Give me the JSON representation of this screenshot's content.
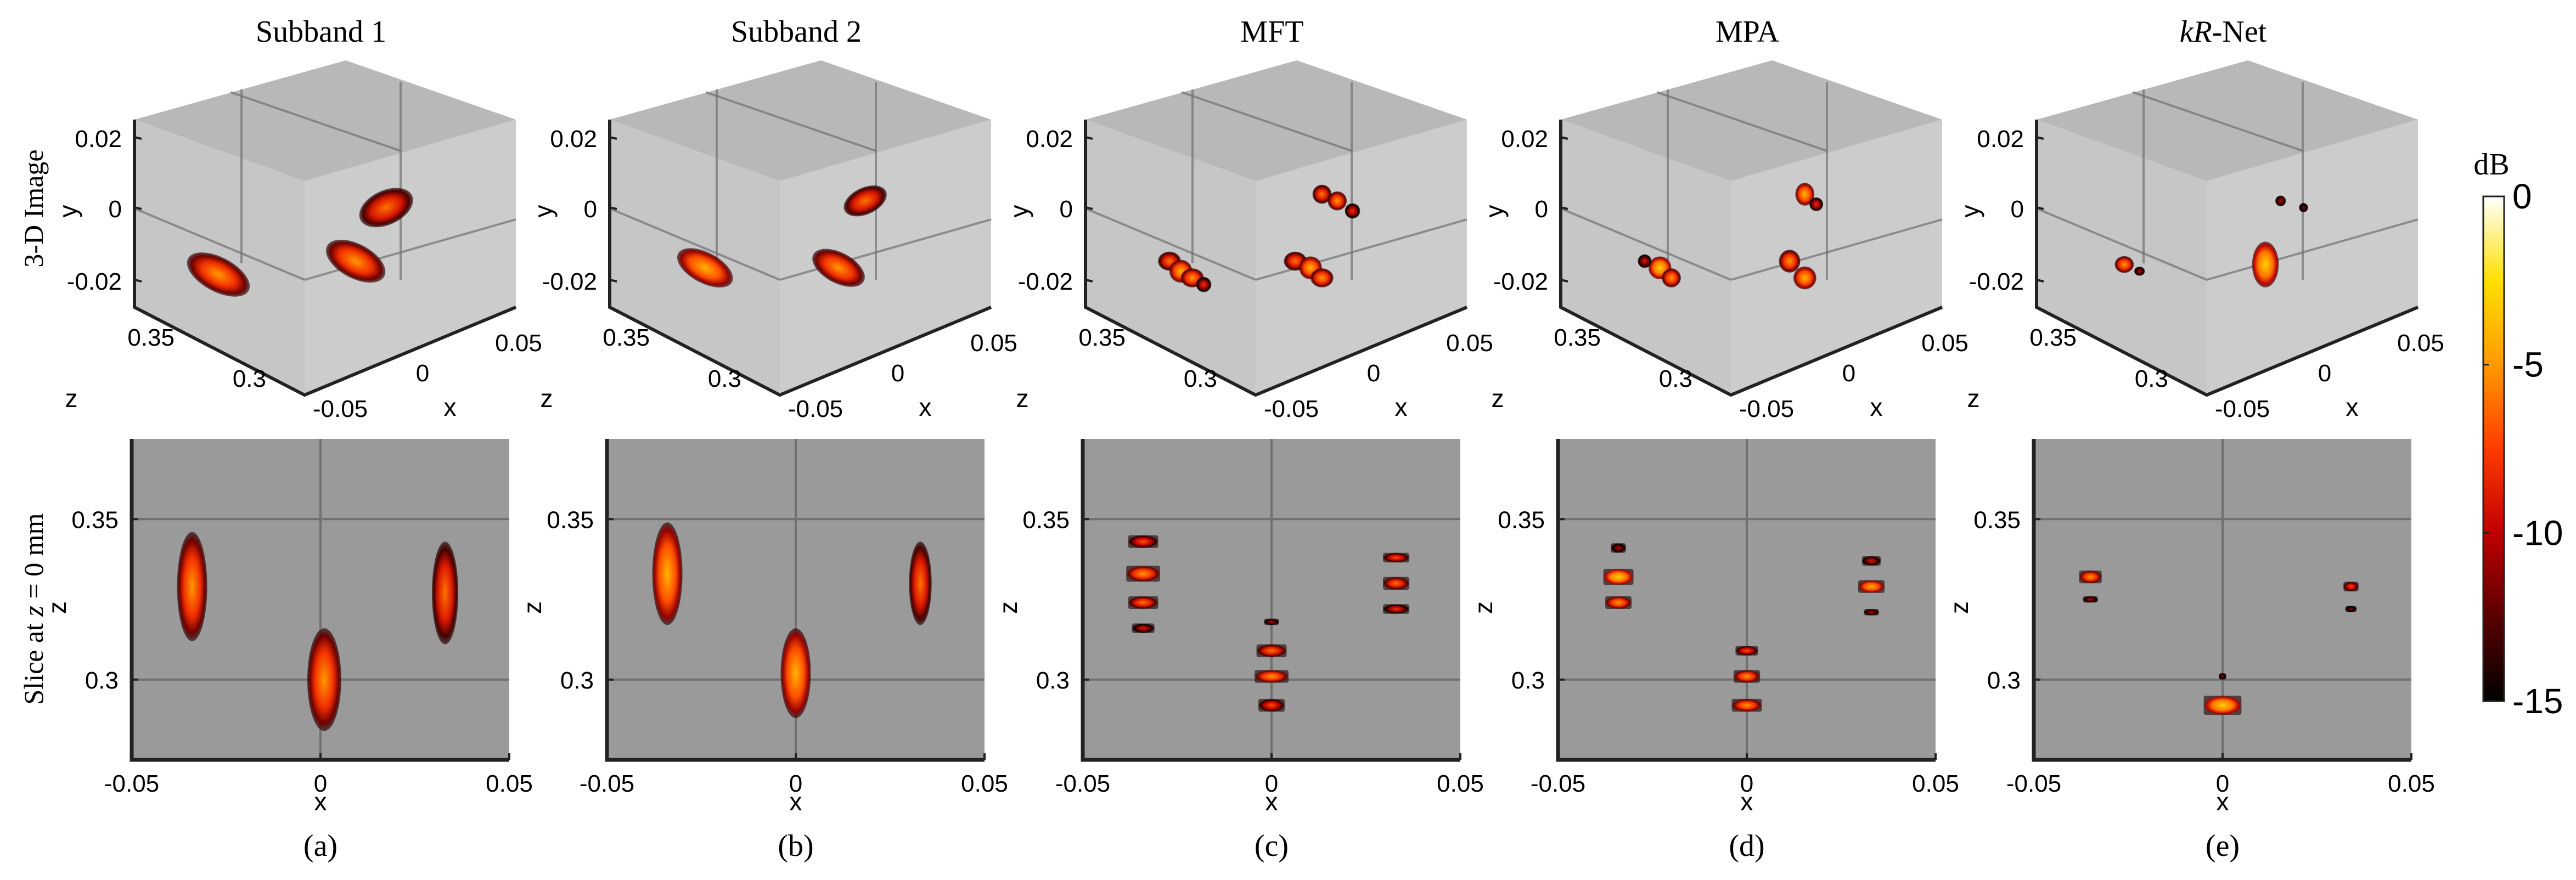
{
  "figure": {
    "colorbar": {
      "unit_label": "dB",
      "ticks": [
        "0",
        "-5",
        "-10",
        "-15"
      ],
      "range": [
        -15,
        0
      ],
      "colors": [
        "#000000",
        "#5a0000",
        "#c00000",
        "#ff3b00",
        "#ff9a00",
        "#ffe000",
        "#ffffff"
      ]
    },
    "row_labels": [
      "3-D Image",
      "Slice at z = 0 mm"
    ],
    "row_label_italic_var": "z",
    "panels": [
      {
        "title": "Subband 1",
        "title_italic": "",
        "caption": "(a)"
      },
      {
        "title": "Subband 2",
        "title_italic": "",
        "caption": "(b)"
      },
      {
        "title": "MFT",
        "title_italic": "",
        "caption": "(c)"
      },
      {
        "title": "MPA",
        "title_italic": "",
        "caption": "(d)"
      },
      {
        "title": "-Net",
        "title_italic": "kR",
        "caption": "(e)"
      }
    ],
    "axes_3d": {
      "y_label": "y",
      "z_label": "z",
      "x_label": "x",
      "y_ticks": [
        "0.02",
        "0",
        "-0.02"
      ],
      "z_ticks": [
        "0.35",
        "0.3"
      ],
      "x_ticks": [
        "-0.05",
        "0",
        "0.05"
      ]
    },
    "axes_2d": {
      "x_label": "x",
      "y_label": "z",
      "x_ticks": [
        "-0.05",
        "0",
        "0.05"
      ],
      "y_ticks": [
        "0.35",
        "0.3"
      ],
      "x_range": [
        -0.05,
        0.05
      ],
      "z_range": [
        0.275,
        0.375
      ]
    },
    "background_colors": {
      "box3d": "#c6c6c6",
      "slice": "#9a9a9a",
      "grid": "#707070"
    }
  },
  "chart_data": [
    {
      "type": "heatmap",
      "title": "Subband 1 slice",
      "xlabel": "x",
      "ylabel": "z",
      "xlim": [
        -0.05,
        0.05
      ],
      "ylim": [
        0.275,
        0.375
      ],
      "targets": [
        {
          "x": -0.034,
          "z": 0.329,
          "w": 0.008,
          "h": 0.034,
          "level": -7
        },
        {
          "x": 0.001,
          "z": 0.3,
          "w": 0.009,
          "h": 0.032,
          "level": -7
        },
        {
          "x": 0.033,
          "z": 0.327,
          "w": 0.007,
          "h": 0.032,
          "level": -8
        }
      ]
    },
    {
      "type": "heatmap",
      "title": "Subband 2 slice",
      "xlabel": "x",
      "ylabel": "z",
      "xlim": [
        -0.05,
        0.05
      ],
      "ylim": [
        0.275,
        0.375
      ],
      "targets": [
        {
          "x": -0.034,
          "z": 0.333,
          "w": 0.008,
          "h": 0.032,
          "level": -6
        },
        {
          "x": 0.0,
          "z": 0.302,
          "w": 0.008,
          "h": 0.028,
          "level": -6
        },
        {
          "x": 0.033,
          "z": 0.33,
          "w": 0.006,
          "h": 0.026,
          "level": -8
        }
      ]
    },
    {
      "type": "heatmap",
      "title": "MFT slice",
      "xlabel": "x",
      "ylabel": "z",
      "xlim": [
        -0.05,
        0.05
      ],
      "ylim": [
        0.275,
        0.375
      ],
      "targets": [
        {
          "x": -0.034,
          "z": 0.343,
          "w": 0.008,
          "h": 0.004,
          "level": -9
        },
        {
          "x": -0.034,
          "z": 0.333,
          "w": 0.009,
          "h": 0.005,
          "level": -7
        },
        {
          "x": -0.034,
          "z": 0.324,
          "w": 0.008,
          "h": 0.004,
          "level": -8
        },
        {
          "x": -0.034,
          "z": 0.316,
          "w": 0.006,
          "h": 0.003,
          "level": -11
        },
        {
          "x": 0.0,
          "z": 0.309,
          "w": 0.008,
          "h": 0.004,
          "level": -8
        },
        {
          "x": 0.0,
          "z": 0.301,
          "w": 0.009,
          "h": 0.004,
          "level": -7
        },
        {
          "x": 0.0,
          "z": 0.292,
          "w": 0.007,
          "h": 0.004,
          "level": -9
        },
        {
          "x": 0.0,
          "z": 0.318,
          "w": 0.004,
          "h": 0.002,
          "level": -12
        },
        {
          "x": 0.033,
          "z": 0.338,
          "w": 0.007,
          "h": 0.003,
          "level": -9
        },
        {
          "x": 0.033,
          "z": 0.33,
          "w": 0.007,
          "h": 0.004,
          "level": -8
        },
        {
          "x": 0.033,
          "z": 0.322,
          "w": 0.007,
          "h": 0.003,
          "level": -10
        }
      ]
    },
    {
      "type": "heatmap",
      "title": "MPA slice",
      "xlabel": "x",
      "ylabel": "z",
      "xlim": [
        -0.05,
        0.05
      ],
      "ylim": [
        0.275,
        0.375
      ],
      "targets": [
        {
          "x": -0.034,
          "z": 0.341,
          "w": 0.004,
          "h": 0.003,
          "level": -12
        },
        {
          "x": -0.034,
          "z": 0.332,
          "w": 0.008,
          "h": 0.005,
          "level": -5
        },
        {
          "x": -0.034,
          "z": 0.324,
          "w": 0.007,
          "h": 0.004,
          "level": -7
        },
        {
          "x": 0.0,
          "z": 0.309,
          "w": 0.006,
          "h": 0.003,
          "level": -9
        },
        {
          "x": 0.0,
          "z": 0.301,
          "w": 0.007,
          "h": 0.004,
          "level": -7
        },
        {
          "x": 0.0,
          "z": 0.292,
          "w": 0.008,
          "h": 0.004,
          "level": -7
        },
        {
          "x": 0.033,
          "z": 0.337,
          "w": 0.005,
          "h": 0.003,
          "level": -11
        },
        {
          "x": 0.033,
          "z": 0.329,
          "w": 0.007,
          "h": 0.004,
          "level": -6
        },
        {
          "x": 0.033,
          "z": 0.321,
          "w": 0.004,
          "h": 0.002,
          "level": -12
        }
      ]
    },
    {
      "type": "heatmap",
      "title": "kR-Net slice",
      "xlabel": "x",
      "ylabel": "z",
      "xlim": [
        -0.05,
        0.05
      ],
      "ylim": [
        0.275,
        0.375
      ],
      "targets": [
        {
          "x": -0.035,
          "z": 0.332,
          "w": 0.006,
          "h": 0.004,
          "level": -7
        },
        {
          "x": -0.035,
          "z": 0.325,
          "w": 0.004,
          "h": 0.002,
          "level": -12
        },
        {
          "x": 0.0,
          "z": 0.292,
          "w": 0.01,
          "h": 0.006,
          "level": -5
        },
        {
          "x": 0.0,
          "z": 0.301,
          "w": 0.002,
          "h": 0.002,
          "level": -13
        },
        {
          "x": 0.034,
          "z": 0.329,
          "w": 0.004,
          "h": 0.003,
          "level": -9
        },
        {
          "x": 0.034,
          "z": 0.322,
          "w": 0.003,
          "h": 0.002,
          "level": -13
        }
      ]
    }
  ],
  "volumes_3d": [
    {
      "method": "Subband 1",
      "blobs": [
        {
          "u": 0.22,
          "v": 0.64,
          "rx": 0.09,
          "ry": 0.045,
          "rot": 28,
          "level": -7
        },
        {
          "u": 0.58,
          "v": 0.6,
          "rx": 0.085,
          "ry": 0.045,
          "rot": 28,
          "level": -7
        },
        {
          "u": 0.66,
          "v": 0.44,
          "rx": 0.075,
          "ry": 0.045,
          "rot": -25,
          "level": -8
        }
      ]
    },
    {
      "method": "Subband 2",
      "blobs": [
        {
          "u": 0.25,
          "v": 0.62,
          "rx": 0.08,
          "ry": 0.04,
          "rot": 28,
          "level": -6
        },
        {
          "u": 0.6,
          "v": 0.62,
          "rx": 0.075,
          "ry": 0.04,
          "rot": 28,
          "level": -7
        },
        {
          "u": 0.67,
          "v": 0.42,
          "rx": 0.06,
          "ry": 0.035,
          "rot": -25,
          "level": -8
        }
      ]
    },
    {
      "method": "MFT",
      "blobs": [
        {
          "u": 0.22,
          "v": 0.6,
          "rx": 0.03,
          "ry": 0.025,
          "rot": 0,
          "level": -8
        },
        {
          "u": 0.25,
          "v": 0.63,
          "rx": 0.03,
          "ry": 0.03,
          "rot": 0,
          "level": -6
        },
        {
          "u": 0.28,
          "v": 0.65,
          "rx": 0.03,
          "ry": 0.025,
          "rot": 0,
          "level": -7
        },
        {
          "u": 0.31,
          "v": 0.67,
          "rx": 0.02,
          "ry": 0.02,
          "rot": 0,
          "level": -10
        },
        {
          "u": 0.55,
          "v": 0.6,
          "rx": 0.03,
          "ry": 0.025,
          "rot": 0,
          "level": -8
        },
        {
          "u": 0.59,
          "v": 0.62,
          "rx": 0.03,
          "ry": 0.03,
          "rot": 0,
          "level": -6
        },
        {
          "u": 0.62,
          "v": 0.65,
          "rx": 0.03,
          "ry": 0.025,
          "rot": 0,
          "level": -7
        },
        {
          "u": 0.62,
          "v": 0.4,
          "rx": 0.025,
          "ry": 0.025,
          "rot": 0,
          "level": -8
        },
        {
          "u": 0.66,
          "v": 0.42,
          "rx": 0.025,
          "ry": 0.025,
          "rot": 0,
          "level": -7
        },
        {
          "u": 0.7,
          "v": 0.45,
          "rx": 0.02,
          "ry": 0.02,
          "rot": 0,
          "level": -10
        }
      ]
    },
    {
      "method": "MPA",
      "blobs": [
        {
          "u": 0.26,
          "v": 0.62,
          "rx": 0.03,
          "ry": 0.03,
          "rot": 0,
          "level": -5
        },
        {
          "u": 0.29,
          "v": 0.65,
          "rx": 0.025,
          "ry": 0.025,
          "rot": 0,
          "level": -7
        },
        {
          "u": 0.22,
          "v": 0.6,
          "rx": 0.018,
          "ry": 0.018,
          "rot": 0,
          "level": -11
        },
        {
          "u": 0.6,
          "v": 0.6,
          "rx": 0.028,
          "ry": 0.03,
          "rot": 0,
          "level": -7
        },
        {
          "u": 0.64,
          "v": 0.65,
          "rx": 0.03,
          "ry": 0.03,
          "rot": 0,
          "level": -6
        },
        {
          "u": 0.64,
          "v": 0.4,
          "rx": 0.025,
          "ry": 0.03,
          "rot": 0,
          "level": -6
        },
        {
          "u": 0.67,
          "v": 0.43,
          "rx": 0.018,
          "ry": 0.018,
          "rot": 0,
          "level": -10
        }
      ]
    },
    {
      "method": "kR-Net",
      "blobs": [
        {
          "u": 0.23,
          "v": 0.61,
          "rx": 0.025,
          "ry": 0.022,
          "rot": 0,
          "level": -7
        },
        {
          "u": 0.27,
          "v": 0.63,
          "rx": 0.014,
          "ry": 0.012,
          "rot": 0,
          "level": -12
        },
        {
          "u": 0.6,
          "v": 0.61,
          "rx": 0.035,
          "ry": 0.06,
          "rot": 0,
          "level": -5
        },
        {
          "u": 0.64,
          "v": 0.42,
          "rx": 0.014,
          "ry": 0.014,
          "rot": 0,
          "level": -12
        },
        {
          "u": 0.7,
          "v": 0.44,
          "rx": 0.012,
          "ry": 0.012,
          "rot": 0,
          "level": -13
        }
      ]
    }
  ]
}
